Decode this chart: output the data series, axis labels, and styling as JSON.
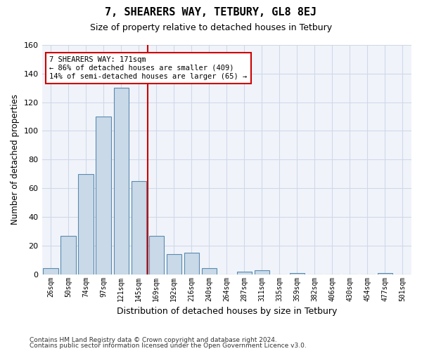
{
  "title": "7, SHEARERS WAY, TETBURY, GL8 8EJ",
  "subtitle": "Size of property relative to detached houses in Tetbury",
  "xlabel": "Distribution of detached houses by size in Tetbury",
  "ylabel": "Number of detached properties",
  "bin_labels": [
    "26sqm",
    "50sqm",
    "74sqm",
    "97sqm",
    "121sqm",
    "145sqm",
    "169sqm",
    "192sqm",
    "216sqm",
    "240sqm",
    "264sqm",
    "287sqm",
    "311sqm",
    "335sqm",
    "359sqm",
    "382sqm",
    "406sqm",
    "430sqm",
    "454sqm",
    "477sqm",
    "501sqm"
  ],
  "bar_values": [
    4,
    27,
    70,
    110,
    130,
    65,
    27,
    14,
    15,
    4,
    0,
    2,
    3,
    0,
    1,
    0,
    0,
    0,
    0,
    1,
    0
  ],
  "bar_color": "#c9d9e8",
  "bar_edge_color": "#5a8ab0",
  "grid_color": "#d0d8e8",
  "bg_color": "#f0f4fa",
  "vline_color": "#cc0000",
  "annotation_text": "7 SHEARERS WAY: 171sqm\n← 86% of detached houses are smaller (409)\n14% of semi-detached houses are larger (65) →",
  "annotation_box_color": "#ffffff",
  "annotation_box_edge": "#cc0000",
  "ylim": [
    0,
    160
  ],
  "yticks": [
    0,
    20,
    40,
    60,
    80,
    100,
    120,
    140,
    160
  ],
  "footer1": "Contains HM Land Registry data © Crown copyright and database right 2024.",
  "footer2": "Contains public sector information licensed under the Open Government Licence v3.0."
}
